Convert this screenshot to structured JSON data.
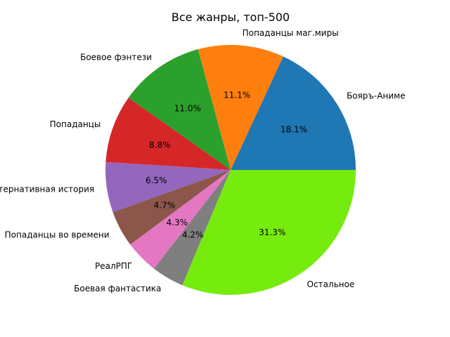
{
  "chart_data": {
    "type": "pie",
    "title": "Все жанры, топ-500",
    "labels": [
      "Бояръ-Аниме",
      "Попаданцы маг.миры",
      "Боевое фэнтези",
      "Попаданцы",
      "Альтернативная история",
      "Попаданцы во времени",
      "РеалРПГ",
      "Боевая фантастика",
      "Остальное"
    ],
    "values": [
      18.1,
      11.1,
      11.0,
      8.8,
      6.5,
      4.7,
      4.3,
      4.2,
      31.3
    ],
    "value_labels": [
      "18.1%",
      "11.1%",
      "11.0%",
      "8.8%",
      "6.5%",
      "4.7%",
      "4.3%",
      "4.2%",
      "31.3%"
    ],
    "colors": [
      "#1f77b4",
      "#ff7f0e",
      "#2ca02c",
      "#d62728",
      "#9467bd",
      "#8c564b",
      "#e377c2",
      "#7f7f7f",
      "#76eb0e"
    ],
    "start_angle_deg": 0,
    "direction": "counterclockwise"
  }
}
